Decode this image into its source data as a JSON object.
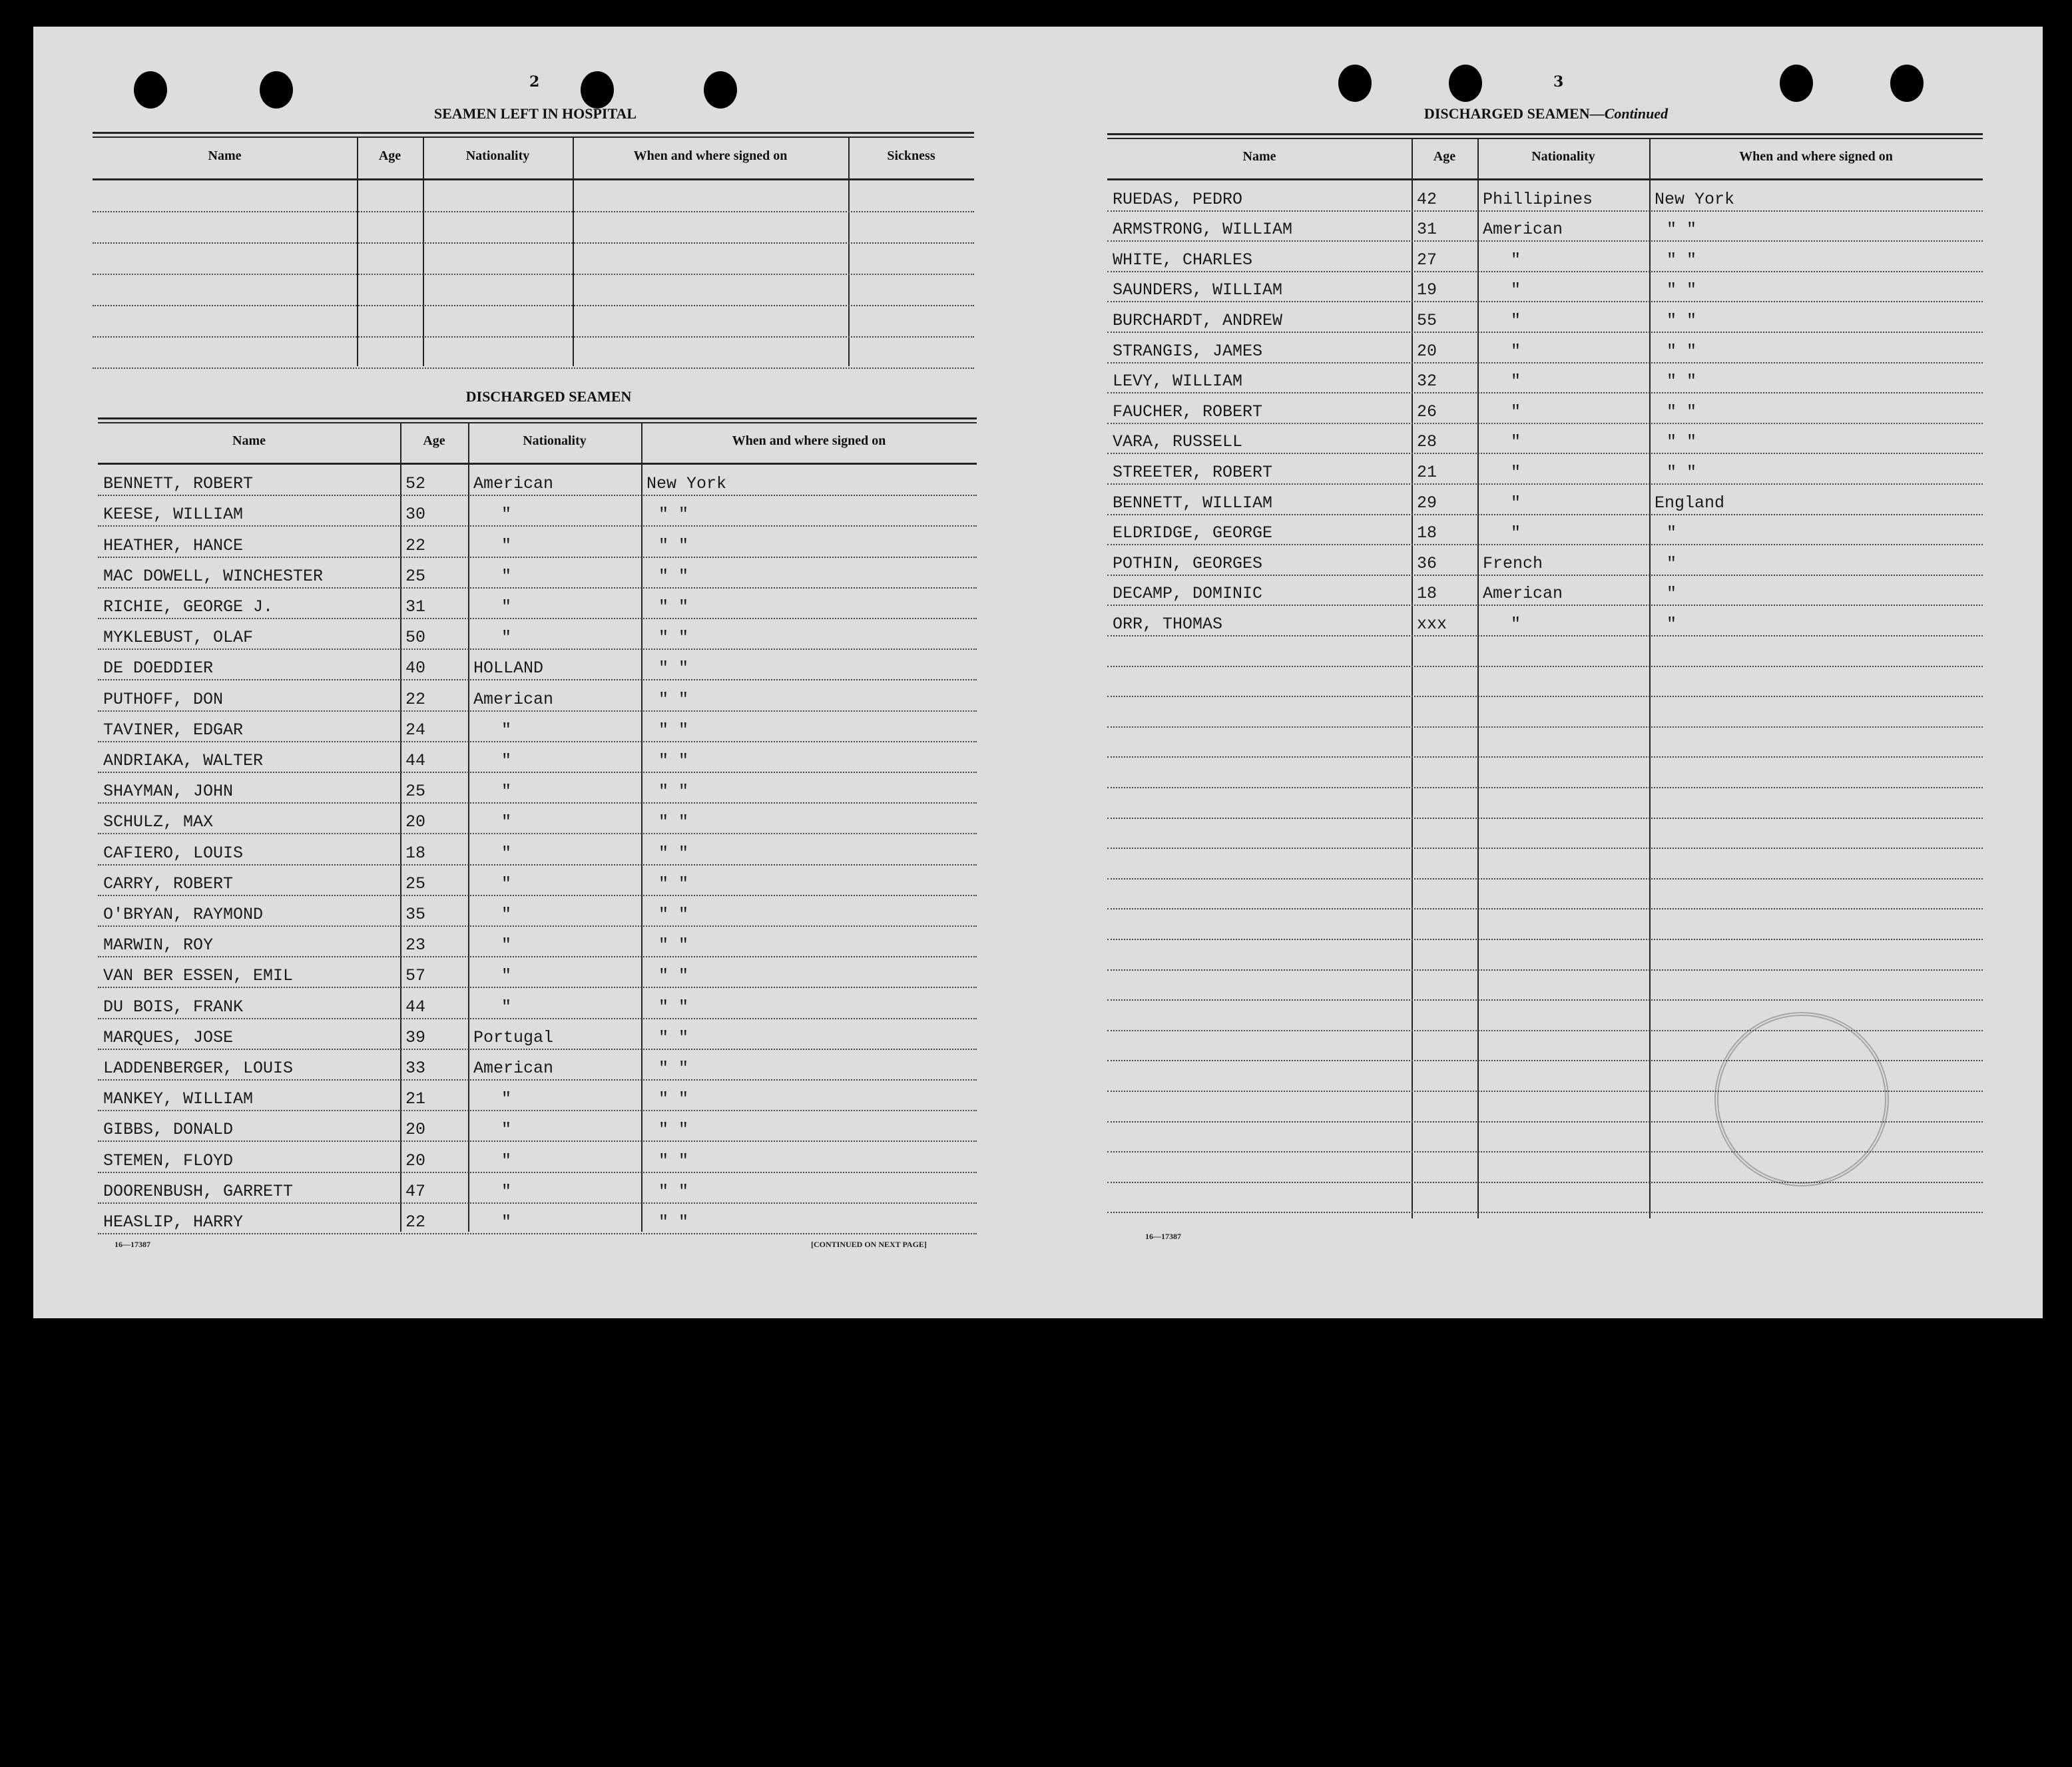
{
  "left_page": {
    "page_number": "2",
    "hospital": {
      "title": "SEAMEN LEFT IN HOSPITAL",
      "headers": [
        "Name",
        "Age",
        "Nationality",
        "When and where signed on",
        "Sickness"
      ],
      "rows": []
    },
    "discharged": {
      "title": "DISCHARGED SEAMEN",
      "headers": [
        "Name",
        "Age",
        "Nationality",
        "When and where signed on"
      ],
      "rows": [
        [
          "BENNETT, ROBERT",
          "52",
          "American",
          "New York"
        ],
        [
          "KEESE, WILLIAM",
          "30",
          "\"",
          "\"  \""
        ],
        [
          "HEATHER, HANCE",
          "22",
          "\"",
          "\"  \""
        ],
        [
          "MAC DOWELL, WINCHESTER",
          "25",
          "\"",
          "\"  \""
        ],
        [
          "RICHIE, GEORGE J.",
          "31",
          "\"",
          "\"  \""
        ],
        [
          "MYKLEBUST, OLAF",
          "50",
          "\"",
          "\"  \""
        ],
        [
          "DE DOEDDIER",
          "40",
          "HOLLAND",
          "\"  \""
        ],
        [
          "PUTHOFF, DON",
          "22",
          "American",
          "\"  \""
        ],
        [
          "TAVINER, EDGAR",
          "24",
          "\"",
          "\"  \""
        ],
        [
          "ANDRIAKA, WALTER",
          "44",
          "\"",
          "\"  \""
        ],
        [
          "SHAYMAN, JOHN",
          "25",
          "\"",
          "\"  \""
        ],
        [
          "SCHULZ, MAX",
          "20",
          "\"",
          "\"  \""
        ],
        [
          "CAFIERO, LOUIS",
          "18",
          "\"",
          "\"  \""
        ],
        [
          "CARRY, ROBERT",
          "25",
          "\"",
          "\"  \""
        ],
        [
          "O'BRYAN, RAYMOND",
          "35",
          "\"",
          "\"  \""
        ],
        [
          "MARWIN, ROY",
          "23",
          "\"",
          "\"  \""
        ],
        [
          "VAN BER ESSEN, EMIL",
          "57",
          "\"",
          "\"  \""
        ],
        [
          "DU BOIS, FRANK",
          "44",
          "\"",
          "\"  \""
        ],
        [
          "MARQUES, JOSE",
          "39",
          "Portugal",
          "\"  \""
        ],
        [
          "LADDENBERGER, LOUIS",
          "33",
          "American",
          "\"  \""
        ],
        [
          "MANKEY, WILLIAM",
          "21",
          "\"",
          "\"  \""
        ],
        [
          "GIBBS, DONALD",
          "20",
          "\"",
          "\"  \""
        ],
        [
          "STEMEN, FLOYD",
          "20",
          "\"",
          "\"  \""
        ],
        [
          "DOORENBUSH, GARRETT",
          "47",
          "\"",
          "\"  \""
        ],
        [
          "HEASLIP, HARRY",
          "22",
          "\"",
          "\"  \""
        ]
      ]
    },
    "form_number": "16—17387",
    "continued": "[CONTINUED ON NEXT PAGE]"
  },
  "right_page": {
    "page_number": "3",
    "title": "DISCHARGED SEAMEN",
    "title_suffix": "—Continued",
    "headers": [
      "Name",
      "Age",
      "Nationality",
      "When and where signed on"
    ],
    "rows": [
      [
        "RUEDAS, PEDRO",
        "42",
        "Phillipines",
        "New York"
      ],
      [
        "ARMSTRONG, WILLIAM",
        "31",
        "American",
        "\"  \""
      ],
      [
        "WHITE, CHARLES",
        "27",
        "\"",
        "\"  \""
      ],
      [
        "SAUNDERS, WILLIAM",
        "19",
        "\"",
        "\"  \""
      ],
      [
        "BURCHARDT, ANDREW",
        "55",
        "\"",
        "\"  \""
      ],
      [
        "STRANGIS, JAMES",
        "20",
        "\"",
        "\"  \""
      ],
      [
        "LEVY, WILLIAM",
        "32",
        "\"",
        "\"  \""
      ],
      [
        "FAUCHER, ROBERT",
        "26",
        "\"",
        "\"  \""
      ],
      [
        "VARA, RUSSELL",
        "28",
        "\"",
        "\"  \""
      ],
      [
        "STREETER, ROBERT",
        "21",
        "\"",
        "\"  \""
      ],
      [
        "BENNETT, WILLIAM",
        "29",
        "\"",
        "England"
      ],
      [
        "ELDRIDGE, GEORGE",
        "18",
        "\"",
        "\""
      ],
      [
        "POTHIN, GEORGES",
        "36",
        "French",
        "\""
      ],
      [
        "DECAMP, DOMINIC",
        "18",
        "American",
        "\""
      ],
      [
        " ORR, THOMAS",
        "xxx",
        "\"",
        "\""
      ]
    ],
    "form_number": "16—17387"
  }
}
